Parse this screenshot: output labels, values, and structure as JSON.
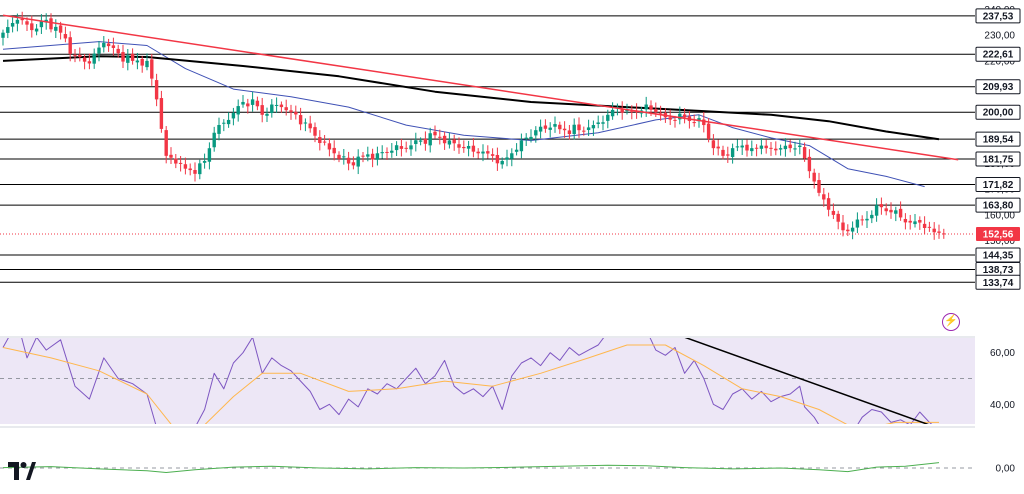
{
  "chart_data": [
    {
      "type": "candlestick",
      "name": "price",
      "ylim": [
        128,
        241
      ],
      "y_ticks": [
        "240,00",
        "230,00",
        "220,00",
        "210,00",
        "200,00",
        "190,00",
        "180,00",
        "170,00",
        "160,00",
        "150,00",
        "140,00"
      ],
      "y_tick_values": [
        240,
        230,
        220,
        210,
        200,
        190,
        180,
        170,
        160,
        150,
        140
      ],
      "horizontal_levels": [
        {
          "label": "237,53",
          "value": 237.53
        },
        {
          "label": "222,61",
          "value": 222.61
        },
        {
          "label": "209,93",
          "value": 209.93
        },
        {
          "label": "200,00",
          "value": 200.0
        },
        {
          "label": "189,54",
          "value": 189.54
        },
        {
          "label": "181,75",
          "value": 181.75
        },
        {
          "label": "171,82",
          "value": 171.82
        },
        {
          "label": "163,80",
          "value": 163.8
        },
        {
          "label": "144,35",
          "value": 144.35
        },
        {
          "label": "138,73",
          "value": 138.73
        },
        {
          "label": "133,74",
          "value": 133.74
        }
      ],
      "last_price": {
        "label": "152,56",
        "value": 152.56
      },
      "trendline": {
        "color": "#f23645",
        "from": [
          0,
          237.8
        ],
        "to": [
          199,
          181.5
        ]
      },
      "close_anchors": [
        [
          0,
          231
        ],
        [
          3,
          236
        ],
        [
          6,
          232
        ],
        [
          9,
          236
        ],
        [
          12,
          231
        ],
        [
          15,
          222
        ],
        [
          18,
          219
        ],
        [
          21,
          227
        ],
        [
          24,
          223
        ],
        [
          27,
          220
        ],
        [
          30,
          220
        ],
        [
          32,
          205
        ],
        [
          34,
          183
        ],
        [
          36,
          180
        ],
        [
          38,
          178
        ],
        [
          40,
          176
        ],
        [
          42,
          181
        ],
        [
          44,
          192
        ],
        [
          47,
          197
        ],
        [
          50,
          204
        ],
        [
          52,
          205
        ],
        [
          54,
          199
        ],
        [
          56,
          203
        ],
        [
          58,
          202
        ],
        [
          60,
          200
        ],
        [
          63,
          196
        ],
        [
          66,
          188
        ],
        [
          69,
          184
        ],
        [
          72,
          180
        ],
        [
          75,
          183
        ],
        [
          78,
          184
        ],
        [
          81,
          185
        ],
        [
          84,
          186
        ],
        [
          87,
          189
        ],
        [
          90,
          191
        ],
        [
          93,
          189
        ],
        [
          96,
          186
        ],
        [
          99,
          184
        ],
        [
          102,
          183
        ],
        [
          104,
          181
        ],
        [
          106,
          184
        ],
        [
          108,
          189
        ],
        [
          111,
          193
        ],
        [
          114,
          194
        ],
        [
          117,
          193
        ],
        [
          120,
          193
        ],
        [
          123,
          195
        ],
        [
          126,
          199
        ],
        [
          128,
          202
        ],
        [
          130,
          201
        ],
        [
          132,
          200
        ],
        [
          134,
          203
        ],
        [
          136,
          200
        ],
        [
          138,
          198
        ],
        [
          140,
          197
        ],
        [
          142,
          198
        ],
        [
          144,
          196
        ],
        [
          146,
          195
        ],
        [
          148,
          186
        ],
        [
          150,
          183
        ],
        [
          152,
          186
        ],
        [
          154,
          187
        ],
        [
          156,
          186
        ],
        [
          158,
          187
        ],
        [
          160,
          186
        ],
        [
          162,
          186
        ],
        [
          164,
          186
        ],
        [
          166,
          187
        ],
        [
          167,
          182
        ],
        [
          169,
          173
        ],
        [
          171,
          166
        ],
        [
          173,
          160
        ],
        [
          175,
          154
        ],
        [
          177,
          155
        ],
        [
          179,
          158
        ],
        [
          181,
          160
        ],
        [
          183,
          163
        ],
        [
          185,
          161
        ],
        [
          187,
          159
        ],
        [
          189,
          157
        ],
        [
          191,
          157
        ],
        [
          193,
          155
        ],
        [
          195,
          153
        ],
        [
          196,
          152.56
        ]
      ],
      "series": [
        {
          "name": "",
          "kind": "moving-average",
          "color": "#3f51b5",
          "points": [
            [
              0,
              224.5
            ],
            [
              20,
              227.5
            ],
            [
              30,
              226
            ],
            [
              38,
              217
            ],
            [
              48,
              209
            ],
            [
              60,
              206
            ],
            [
              72,
              202
            ],
            [
              84,
              195
            ],
            [
              96,
              191
            ],
            [
              110,
              189
            ],
            [
              124,
              192
            ],
            [
              136,
              197
            ],
            [
              145,
              199
            ],
            [
              152,
              194
            ],
            [
              160,
              190
            ],
            [
              168,
              187
            ],
            [
              176,
              178
            ],
            [
              184,
              175
            ],
            [
              192,
              171
            ]
          ]
        },
        {
          "name": "",
          "kind": "moving-average",
          "color": "#000000",
          "points": [
            [
              0,
              220
            ],
            [
              20,
              221.8
            ],
            [
              30,
              221.5
            ],
            [
              50,
              218
            ],
            [
              70,
              214
            ],
            [
              90,
              208
            ],
            [
              110,
              204
            ],
            [
              130,
              202
            ],
            [
              145,
              200.5
            ],
            [
              160,
              199
            ],
            [
              172,
              196.5
            ],
            [
              184,
              192.5
            ],
            [
              195,
              189.5
            ]
          ]
        }
      ]
    },
    {
      "type": "line",
      "name": "oscillator",
      "ylim": [
        25,
        75
      ],
      "y_ticks": [
        "60,00",
        "40,00"
      ],
      "y_tick_values": [
        60,
        40
      ],
      "band": [
        30,
        70
      ],
      "midline": 50,
      "series": [
        {
          "name": "",
          "kind": "oscillator",
          "color": "#7e57c2",
          "points": [
            [
              0,
              62
            ],
            [
              3,
              72
            ],
            [
              5,
              58
            ],
            [
              7,
              66
            ],
            [
              9,
              61
            ],
            [
              12,
              65
            ],
            [
              15,
              47
            ],
            [
              18,
              42
            ],
            [
              21,
              58
            ],
            [
              24,
              50
            ],
            [
              27,
              48
            ],
            [
              30,
              44
            ],
            [
              32,
              31
            ],
            [
              34,
              24
            ],
            [
              36,
              27
            ],
            [
              38,
              29
            ],
            [
              40,
              31
            ],
            [
              42,
              38
            ],
            [
              44,
              52
            ],
            [
              46,
              46
            ],
            [
              48,
              56
            ],
            [
              50,
              60
            ],
            [
              52,
              66
            ],
            [
              54,
              52
            ],
            [
              56,
              58
            ],
            [
              58,
              55
            ],
            [
              60,
              53
            ],
            [
              62,
              49
            ],
            [
              64,
              45
            ],
            [
              66,
              38
            ],
            [
              68,
              40
            ],
            [
              70,
              36
            ],
            [
              72,
              42
            ],
            [
              74,
              39
            ],
            [
              76,
              46
            ],
            [
              78,
              44
            ],
            [
              80,
              48
            ],
            [
              82,
              46
            ],
            [
              84,
              50
            ],
            [
              86,
              54
            ],
            [
              88,
              48
            ],
            [
              90,
              51
            ],
            [
              92,
              57
            ],
            [
              94,
              47
            ],
            [
              96,
              44
            ],
            [
              98,
              46
            ],
            [
              100,
              43
            ],
            [
              102,
              47
            ],
            [
              104,
              38
            ],
            [
              106,
              51
            ],
            [
              108,
              56
            ],
            [
              110,
              58
            ],
            [
              112,
              55
            ],
            [
              114,
              60
            ],
            [
              116,
              57
            ],
            [
              118,
              62
            ],
            [
              120,
              59
            ],
            [
              122,
              61
            ],
            [
              124,
              63
            ],
            [
              126,
              68
            ],
            [
              128,
              66
            ],
            [
              130,
              74
            ],
            [
              132,
              66
            ],
            [
              134,
              69
            ],
            [
              136,
              61
            ],
            [
              138,
              59
            ],
            [
              140,
              62
            ],
            [
              142,
              52
            ],
            [
              144,
              57
            ],
            [
              146,
              50
            ],
            [
              148,
              40
            ],
            [
              150,
              38
            ],
            [
              152,
              44
            ],
            [
              154,
              46
            ],
            [
              156,
              42
            ],
            [
              158,
              45
            ],
            [
              160,
              41
            ],
            [
              162,
              43
            ],
            [
              164,
              44
            ],
            [
              166,
              47
            ],
            [
              167,
              39
            ],
            [
              169,
              35
            ],
            [
              171,
              29
            ],
            [
              173,
              28
            ],
            [
              175,
              24
            ],
            [
              177,
              29
            ],
            [
              179,
              35
            ],
            [
              181,
              38
            ],
            [
              183,
              37
            ],
            [
              185,
              33
            ],
            [
              187,
              34
            ],
            [
              189,
              32
            ],
            [
              191,
              37
            ],
            [
              193,
              33
            ],
            [
              195,
              30
            ]
          ]
        },
        {
          "name": "",
          "kind": "oscillator-average",
          "color": "#ffb74d",
          "points": [
            [
              0,
              62
            ],
            [
              10,
              58
            ],
            [
              20,
              53
            ],
            [
              30,
              44
            ],
            [
              36,
              30
            ],
            [
              42,
              32
            ],
            [
              48,
              43
            ],
            [
              54,
              52
            ],
            [
              62,
              52
            ],
            [
              72,
              45
            ],
            [
              82,
              46
            ],
            [
              92,
              49
            ],
            [
              102,
              47
            ],
            [
              112,
              52
            ],
            [
              122,
              58
            ],
            [
              130,
              63
            ],
            [
              138,
              63
            ],
            [
              146,
              55
            ],
            [
              154,
              46
            ],
            [
              162,
              43
            ],
            [
              170,
              38
            ],
            [
              178,
              30
            ],
            [
              186,
              33
            ],
            [
              195,
              33
            ]
          ]
        }
      ],
      "trendline": {
        "color": "#000000",
        "from": [
          130,
          74
        ],
        "to": [
          199,
          28
        ]
      }
    },
    {
      "type": "line",
      "name": "momentum",
      "ylim": [
        -1,
        1
      ],
      "y_ticks": [
        "0,00"
      ],
      "y_tick_values": [
        0
      ],
      "zero_line": 0,
      "series": [
        {
          "name": "",
          "kind": "momentum",
          "color": "#4caf50",
          "points": [
            [
              0,
              0.05
            ],
            [
              10,
              0.15
            ],
            [
              20,
              -0.1
            ],
            [
              30,
              -0.3
            ],
            [
              34,
              -0.5
            ],
            [
              40,
              -0.2
            ],
            [
              48,
              0.1
            ],
            [
              56,
              0.2
            ],
            [
              66,
              0.0
            ],
            [
              76,
              -0.1
            ],
            [
              86,
              0.05
            ],
            [
              96,
              0.0
            ],
            [
              106,
              0.08
            ],
            [
              116,
              0.2
            ],
            [
              126,
              0.3
            ],
            [
              134,
              0.25
            ],
            [
              142,
              0.05
            ],
            [
              152,
              -0.1
            ],
            [
              162,
              0.0
            ],
            [
              170,
              -0.2
            ],
            [
              176,
              -0.4
            ],
            [
              182,
              0.1
            ],
            [
              188,
              0.2
            ],
            [
              195,
              0.6
            ]
          ]
        }
      ]
    }
  ],
  "colors": {
    "up": "#089981",
    "down": "#f23645",
    "last_price_bg": "#f23645",
    "level_line": "#000000",
    "band_fill": "#ede7f6",
    "band_line": "#9598a1"
  },
  "icons": {
    "logo": "tradingview-logo-icon",
    "alert": "lightning-icon"
  }
}
